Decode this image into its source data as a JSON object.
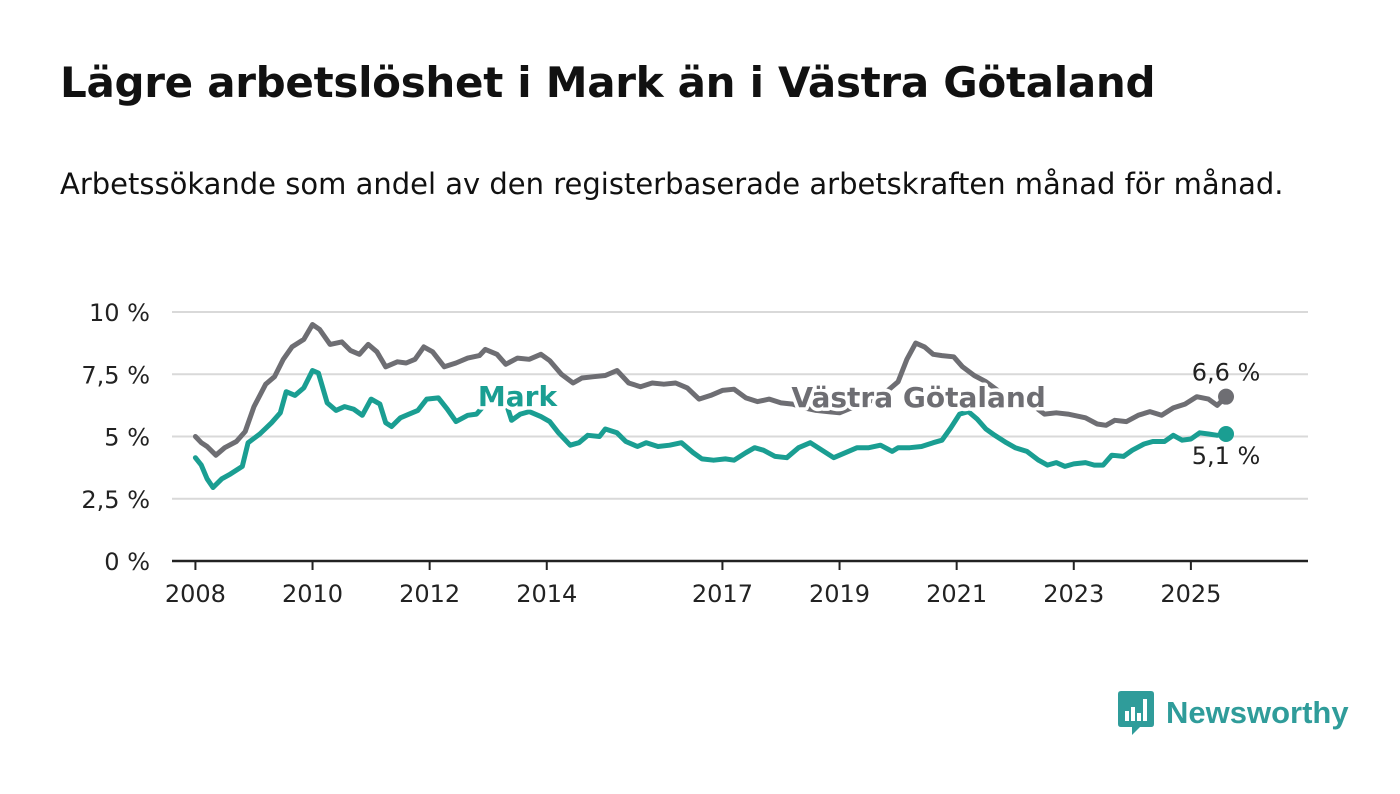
{
  "title": "Lägre arbetslöshet i Mark än i Västra Götaland",
  "subtitle": "Arbetssökande som andel av den registerbaserade arbetskraften månad för månad.",
  "brand": {
    "name": "Newsworthy",
    "icon": "bar-chart-icon"
  },
  "chart_data": {
    "type": "line",
    "ylim": [
      0,
      10
    ],
    "xlim": [
      2007.6,
      2027.0
    ],
    "y_ticks": [
      {
        "value": 0,
        "label": "0 %"
      },
      {
        "value": 2.5,
        "label": "2,5 %"
      },
      {
        "value": 5,
        "label": "5 %"
      },
      {
        "value": 7.5,
        "label": "7,5 %"
      },
      {
        "value": 10,
        "label": "10 %"
      }
    ],
    "x_ticks": [
      {
        "value": 2008,
        "label": "2008"
      },
      {
        "value": 2010,
        "label": "2010"
      },
      {
        "value": 2012,
        "label": "2012"
      },
      {
        "value": 2014,
        "label": "2014"
      },
      {
        "value": 2017,
        "label": "2017"
      },
      {
        "value": 2019,
        "label": "2019"
      },
      {
        "value": 2021,
        "label": "2021"
      },
      {
        "value": 2023,
        "label": "2023"
      },
      {
        "value": 2025,
        "label": "2025"
      }
    ],
    "grid": true,
    "series": [
      {
        "name": "Västra Götaland",
        "color": "#6e6e73",
        "end_label": "6,6 %",
        "points": [
          [
            2008.0,
            5.0
          ],
          [
            2008.1,
            4.75
          ],
          [
            2008.2,
            4.6
          ],
          [
            2008.35,
            4.25
          ],
          [
            2008.5,
            4.55
          ],
          [
            2008.7,
            4.8
          ],
          [
            2008.85,
            5.2
          ],
          [
            2009.0,
            6.2
          ],
          [
            2009.2,
            7.1
          ],
          [
            2009.35,
            7.4
          ],
          [
            2009.5,
            8.1
          ],
          [
            2009.65,
            8.6
          ],
          [
            2009.85,
            8.9
          ],
          [
            2010.0,
            9.5
          ],
          [
            2010.12,
            9.3
          ],
          [
            2010.3,
            8.7
          ],
          [
            2010.5,
            8.8
          ],
          [
            2010.65,
            8.45
          ],
          [
            2010.8,
            8.3
          ],
          [
            2010.95,
            8.7
          ],
          [
            2011.1,
            8.4
          ],
          [
            2011.25,
            7.8
          ],
          [
            2011.45,
            8.0
          ],
          [
            2011.6,
            7.95
          ],
          [
            2011.75,
            8.1
          ],
          [
            2011.9,
            8.6
          ],
          [
            2012.05,
            8.4
          ],
          [
            2012.25,
            7.8
          ],
          [
            2012.45,
            7.95
          ],
          [
            2012.65,
            8.15
          ],
          [
            2012.85,
            8.25
          ],
          [
            2012.95,
            8.5
          ],
          [
            2013.15,
            8.3
          ],
          [
            2013.3,
            7.9
          ],
          [
            2013.5,
            8.15
          ],
          [
            2013.7,
            8.1
          ],
          [
            2013.9,
            8.3
          ],
          [
            2014.05,
            8.05
          ],
          [
            2014.25,
            7.5
          ],
          [
            2014.45,
            7.15
          ],
          [
            2014.6,
            7.35
          ],
          [
            2014.8,
            7.4
          ],
          [
            2015.0,
            7.45
          ],
          [
            2015.2,
            7.65
          ],
          [
            2015.4,
            7.15
          ],
          [
            2015.6,
            7.0
          ],
          [
            2015.8,
            7.15
          ],
          [
            2016.0,
            7.1
          ],
          [
            2016.2,
            7.15
          ],
          [
            2016.4,
            6.95
          ],
          [
            2016.6,
            6.5
          ],
          [
            2016.8,
            6.65
          ],
          [
            2017.0,
            6.85
          ],
          [
            2017.2,
            6.9
          ],
          [
            2017.4,
            6.55
          ],
          [
            2017.6,
            6.4
          ],
          [
            2017.8,
            6.5
          ],
          [
            2018.0,
            6.35
          ],
          [
            2018.2,
            6.3
          ],
          [
            2018.4,
            6.15
          ],
          [
            2018.6,
            6.05
          ],
          [
            2018.8,
            6.0
          ],
          [
            2019.0,
            5.95
          ],
          [
            2019.2,
            6.15
          ],
          [
            2019.4,
            6.3
          ],
          [
            2019.6,
            6.5
          ],
          [
            2019.8,
            6.8
          ],
          [
            2020.0,
            7.2
          ],
          [
            2020.15,
            8.1
          ],
          [
            2020.3,
            8.75
          ],
          [
            2020.45,
            8.6
          ],
          [
            2020.6,
            8.3
          ],
          [
            2020.75,
            8.25
          ],
          [
            2020.95,
            8.2
          ],
          [
            2021.1,
            7.8
          ],
          [
            2021.3,
            7.45
          ],
          [
            2021.5,
            7.2
          ],
          [
            2021.7,
            6.85
          ],
          [
            2021.9,
            6.6
          ],
          [
            2022.1,
            6.5
          ],
          [
            2022.3,
            6.25
          ],
          [
            2022.5,
            5.9
          ],
          [
            2022.7,
            5.95
          ],
          [
            2022.9,
            5.9
          ],
          [
            2023.0,
            5.85
          ],
          [
            2023.2,
            5.75
          ],
          [
            2023.4,
            5.5
          ],
          [
            2023.55,
            5.45
          ],
          [
            2023.7,
            5.65
          ],
          [
            2023.9,
            5.6
          ],
          [
            2024.1,
            5.85
          ],
          [
            2024.3,
            6.0
          ],
          [
            2024.5,
            5.85
          ],
          [
            2024.7,
            6.15
          ],
          [
            2024.9,
            6.3
          ],
          [
            2025.1,
            6.6
          ],
          [
            2025.3,
            6.5
          ],
          [
            2025.45,
            6.25
          ],
          [
            2025.6,
            6.6
          ]
        ]
      },
      {
        "name": "Mark",
        "color": "#1a9e92",
        "end_label": "5,1 %",
        "points": [
          [
            2008.0,
            4.15
          ],
          [
            2008.1,
            3.85
          ],
          [
            2008.2,
            3.3
          ],
          [
            2008.3,
            2.95
          ],
          [
            2008.45,
            3.3
          ],
          [
            2008.6,
            3.5
          ],
          [
            2008.8,
            3.8
          ],
          [
            2008.9,
            4.75
          ],
          [
            2009.1,
            5.1
          ],
          [
            2009.3,
            5.55
          ],
          [
            2009.45,
            5.95
          ],
          [
            2009.55,
            6.8
          ],
          [
            2009.7,
            6.65
          ],
          [
            2009.85,
            6.95
          ],
          [
            2010.0,
            7.65
          ],
          [
            2010.1,
            7.55
          ],
          [
            2010.25,
            6.35
          ],
          [
            2010.4,
            6.05
          ],
          [
            2010.55,
            6.2
          ],
          [
            2010.7,
            6.1
          ],
          [
            2010.85,
            5.85
          ],
          [
            2011.0,
            6.5
          ],
          [
            2011.15,
            6.3
          ],
          [
            2011.25,
            5.55
          ],
          [
            2011.35,
            5.4
          ],
          [
            2011.5,
            5.75
          ],
          [
            2011.65,
            5.9
          ],
          [
            2011.8,
            6.05
          ],
          [
            2011.95,
            6.5
          ],
          [
            2012.15,
            6.55
          ],
          [
            2012.3,
            6.1
          ],
          [
            2012.45,
            5.6
          ],
          [
            2012.65,
            5.85
          ],
          [
            2012.8,
            5.9
          ],
          [
            2012.95,
            6.3
          ],
          [
            2013.1,
            6.85
          ],
          [
            2013.25,
            6.75
          ],
          [
            2013.4,
            5.65
          ],
          [
            2013.55,
            5.9
          ],
          [
            2013.7,
            6.0
          ],
          [
            2013.9,
            5.8
          ],
          [
            2014.05,
            5.6
          ],
          [
            2014.2,
            5.15
          ],
          [
            2014.4,
            4.65
          ],
          [
            2014.55,
            4.75
          ],
          [
            2014.7,
            5.05
          ],
          [
            2014.9,
            5.0
          ],
          [
            2015.0,
            5.3
          ],
          [
            2015.2,
            5.15
          ],
          [
            2015.35,
            4.8
          ],
          [
            2015.55,
            4.6
          ],
          [
            2015.7,
            4.75
          ],
          [
            2015.9,
            4.6
          ],
          [
            2016.1,
            4.65
          ],
          [
            2016.3,
            4.75
          ],
          [
            2016.5,
            4.35
          ],
          [
            2016.65,
            4.1
          ],
          [
            2016.85,
            4.05
          ],
          [
            2017.05,
            4.1
          ],
          [
            2017.2,
            4.05
          ],
          [
            2017.4,
            4.35
          ],
          [
            2017.55,
            4.55
          ],
          [
            2017.7,
            4.45
          ],
          [
            2017.9,
            4.2
          ],
          [
            2018.1,
            4.15
          ],
          [
            2018.3,
            4.55
          ],
          [
            2018.5,
            4.75
          ],
          [
            2018.7,
            4.45
          ],
          [
            2018.9,
            4.15
          ],
          [
            2019.1,
            4.35
          ],
          [
            2019.3,
            4.55
          ],
          [
            2019.5,
            4.55
          ],
          [
            2019.7,
            4.65
          ],
          [
            2019.9,
            4.4
          ],
          [
            2020.0,
            4.55
          ],
          [
            2020.2,
            4.55
          ],
          [
            2020.4,
            4.6
          ],
          [
            2020.6,
            4.75
          ],
          [
            2020.75,
            4.85
          ],
          [
            2020.9,
            5.35
          ],
          [
            2021.05,
            5.9
          ],
          [
            2021.2,
            6.0
          ],
          [
            2021.35,
            5.7
          ],
          [
            2021.5,
            5.3
          ],
          [
            2021.65,
            5.05
          ],
          [
            2021.85,
            4.75
          ],
          [
            2022.0,
            4.55
          ],
          [
            2022.2,
            4.4
          ],
          [
            2022.4,
            4.05
          ],
          [
            2022.55,
            3.85
          ],
          [
            2022.7,
            3.95
          ],
          [
            2022.85,
            3.8
          ],
          [
            2023.0,
            3.9
          ],
          [
            2023.2,
            3.95
          ],
          [
            2023.35,
            3.85
          ],
          [
            2023.5,
            3.85
          ],
          [
            2023.65,
            4.25
          ],
          [
            2023.85,
            4.2
          ],
          [
            2024.0,
            4.45
          ],
          [
            2024.2,
            4.7
          ],
          [
            2024.35,
            4.8
          ],
          [
            2024.55,
            4.8
          ],
          [
            2024.7,
            5.05
          ],
          [
            2024.85,
            4.85
          ],
          [
            2025.0,
            4.9
          ],
          [
            2025.15,
            5.15
          ],
          [
            2025.3,
            5.1
          ],
          [
            2025.45,
            5.05
          ],
          [
            2025.6,
            5.1
          ]
        ]
      }
    ]
  }
}
